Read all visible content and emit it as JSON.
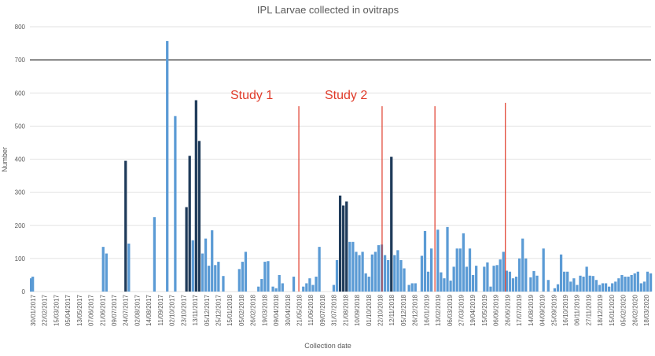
{
  "chart_data": {
    "type": "bar",
    "title": "IPL Larvae collected in ovitraps",
    "xlabel": "Collection date",
    "ylabel": "Number",
    "ylim": [
      0,
      800
    ],
    "yticks": [
      0,
      100,
      200,
      300,
      400,
      500,
      600,
      700,
      800
    ],
    "grid": "horizontal",
    "reference_line": 700,
    "x_tick_labels": [
      "30/01/2017",
      "22/02/2017",
      "15/03/2017",
      "05/04/2017",
      "13/05/2017",
      "07/06/2017",
      "21/06/2017",
      "09/07/2017",
      "24/07/2017",
      "02/08/2017",
      "14/08/2017",
      "11/09/2017",
      "02/10/2017",
      "23/10/2017",
      "13/11/2017",
      "05/12/2017",
      "25/12/2017",
      "15/01/2018",
      "05/02/2018",
      "26/02/2018",
      "19/03/2018",
      "09/04/2018",
      "30/04/2018",
      "21/05/2018",
      "11/06/2018",
      "09/07/2018",
      "31/07/2018",
      "21/08/2018",
      "10/09/2018",
      "01/10/2018",
      "22/10/2018",
      "12/11/2018",
      "05/12/2018",
      "26/12/2018",
      "16/01/2019",
      "13/02/2019",
      "06/03/2019",
      "27/03/2019",
      "19/04/2019",
      "15/05/2019",
      "06/06/2019",
      "26/06/2019",
      "17/07/2019",
      "14/08/2019",
      "04/09/2019",
      "25/09/2019",
      "16/10/2019",
      "06/11/2019",
      "27/11/2019",
      "18/12/2019",
      "15/01/2020",
      "05/02/2020",
      "26/02/2020",
      "18/03/2020"
    ],
    "values": [
      40,
      45,
      0,
      0,
      0,
      0,
      0,
      0,
      0,
      0,
      0,
      0,
      0,
      0,
      0,
      0,
      0,
      0,
      0,
      0,
      0,
      0,
      0,
      0,
      0,
      0,
      0,
      0,
      0,
      0,
      0,
      0,
      0,
      0,
      0,
      0,
      0,
      0,
      0,
      0,
      0,
      0,
      0,
      0,
      0,
      135,
      0,
      115,
      0,
      0,
      0,
      0,
      0,
      0,
      0,
      0,
      0,
      0,
      0,
      395,
      0,
      145,
      0,
      0,
      0,
      0,
      0,
      0,
      0,
      0,
      0,
      0,
      0,
      0,
      0,
      0,
      0,
      225,
      0,
      0,
      0,
      0,
      0,
      0,
      0,
      757,
      0,
      0,
      0,
      0,
      530,
      0,
      0,
      0,
      0,
      0,
      0,
      255,
      0,
      410,
      0,
      155,
      0,
      578,
      0,
      455,
      0,
      115,
      0,
      160,
      0,
      78,
      0,
      185,
      0,
      80,
      0,
      90,
      0,
      0,
      47,
      0,
      0,
      0,
      0,
      0,
      0,
      0,
      0,
      0,
      68,
      0,
      90,
      0,
      120,
      0,
      0,
      0,
      0,
      0,
      0,
      0,
      15,
      0,
      38,
      0,
      90,
      0,
      92,
      0,
      0,
      15,
      0,
      10,
      0,
      50,
      0,
      25,
      0,
      0,
      0,
      0,
      0,
      0,
      45,
      0,
      0,
      0,
      0,
      0,
      15,
      0,
      25,
      0,
      40,
      0,
      20,
      0,
      45,
      0,
      135,
      0,
      0,
      0,
      0,
      0,
      0,
      0,
      0,
      20,
      0,
      95,
      0,
      290,
      0,
      260,
      0,
      272,
      0,
      150,
      0,
      150,
      0,
      120,
      0,
      110,
      0,
      120,
      0,
      55,
      0,
      45,
      0,
      112,
      0,
      120,
      0,
      140,
      0,
      142,
      0,
      110,
      0,
      95,
      0,
      407,
      0,
      110,
      0,
      125,
      0,
      95,
      0,
      70,
      0,
      0,
      20,
      0,
      25,
      0,
      25,
      0,
      0,
      0,
      108,
      0,
      183,
      0,
      60,
      0,
      130,
      0,
      0,
      0,
      187,
      0,
      58,
      0,
      40,
      0,
      195,
      0,
      33,
      0,
      75,
      0,
      130,
      0,
      130,
      0,
      176,
      0,
      75,
      0,
      130,
      0,
      50,
      0,
      78,
      0,
      0,
      0,
      0,
      75,
      0,
      88,
      0,
      15,
      0,
      78,
      0,
      80,
      0,
      97,
      0,
      120,
      0,
      63,
      0,
      60,
      0,
      40,
      0,
      45,
      0,
      100,
      0,
      160,
      0,
      100,
      0,
      0,
      43,
      0,
      62,
      0,
      48,
      0,
      0,
      0,
      130,
      0,
      0,
      35,
      0,
      0,
      0,
      10,
      0,
      22,
      0,
      112,
      0,
      60,
      0,
      60,
      0,
      30,
      0,
      40,
      0,
      20,
      0,
      48,
      0,
      45,
      0,
      75,
      0,
      48,
      0,
      47,
      0,
      35,
      0,
      20,
      0,
      25,
      0,
      25,
      0,
      15,
      0,
      25,
      0,
      30,
      0,
      40,
      0,
      50,
      0,
      45,
      0,
      45,
      0,
      50,
      0,
      55,
      0,
      60,
      0,
      25,
      0,
      30,
      0,
      60,
      0,
      55
    ],
    "vertical_lines": [
      {
        "x_index": 168,
        "ymax": 560
      },
      {
        "x_index": 220,
        "ymax": 560
      },
      {
        "x_index": 253,
        "ymax": 560
      },
      {
        "x_index": 297,
        "ymax": 570
      }
    ],
    "annotations": [
      "Study 1",
      "Study 2"
    ]
  },
  "colors": {
    "bar": "#5b9bd5",
    "bar_dark": "#1f3b5a",
    "grid": "#d9d9d9",
    "ref_line": "#000000",
    "vline": "#e03b2a",
    "annot": "#e03b2a",
    "text": "#595959"
  }
}
